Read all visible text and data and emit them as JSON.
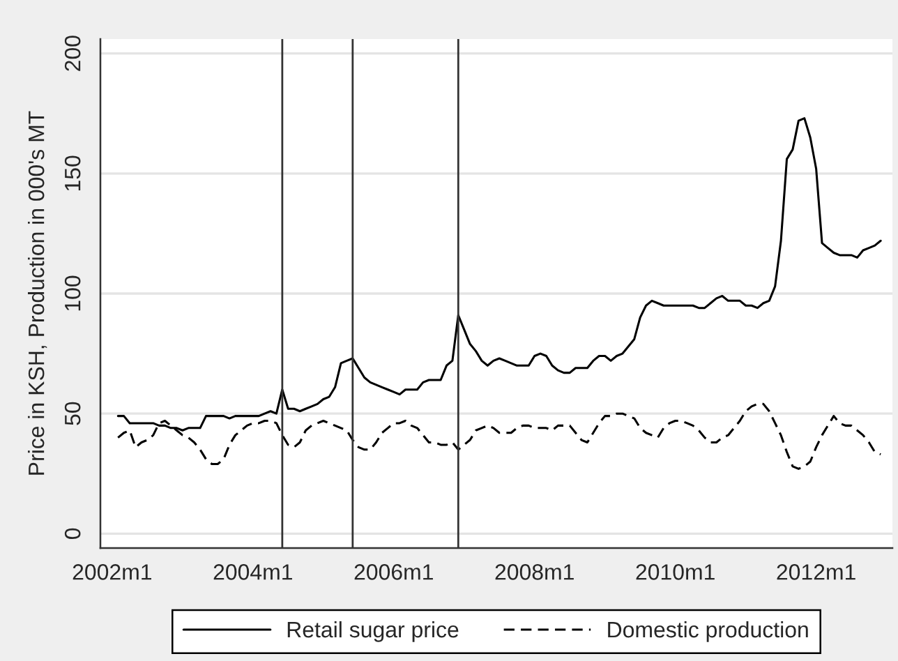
{
  "chart_data": {
    "type": "line",
    "ylabel": "Price in KSH, Production in 000's MT",
    "x": [
      "2002-02",
      "2002-03",
      "2002-04",
      "2002-05",
      "2002-06",
      "2002-07",
      "2002-08",
      "2002-09",
      "2002-10",
      "2002-11",
      "2002-12",
      "2003-01",
      "2003-02",
      "2003-03",
      "2003-04",
      "2003-05",
      "2003-06",
      "2003-07",
      "2003-08",
      "2003-09",
      "2003-10",
      "2003-11",
      "2003-12",
      "2004-01",
      "2004-02",
      "2004-03",
      "2004-04",
      "2004-05",
      "2004-06",
      "2004-07",
      "2004-08",
      "2004-09",
      "2004-10",
      "2004-11",
      "2004-12",
      "2005-01",
      "2005-02",
      "2005-03",
      "2005-04",
      "2005-05",
      "2005-06",
      "2005-07",
      "2005-08",
      "2005-09",
      "2005-10",
      "2005-11",
      "2005-12",
      "2006-01",
      "2006-02",
      "2006-03",
      "2006-04",
      "2006-05",
      "2006-06",
      "2006-07",
      "2006-08",
      "2006-09",
      "2006-10",
      "2006-11",
      "2006-12",
      "2007-01",
      "2007-02",
      "2007-03",
      "2007-04",
      "2007-05",
      "2007-06",
      "2007-07",
      "2007-08",
      "2007-09",
      "2007-10",
      "2007-11",
      "2007-12",
      "2008-01",
      "2008-02",
      "2008-03",
      "2008-04",
      "2008-05",
      "2008-06",
      "2008-07",
      "2008-08",
      "2008-09",
      "2008-10",
      "2008-11",
      "2008-12",
      "2009-01",
      "2009-02",
      "2009-03",
      "2009-04",
      "2009-05",
      "2009-06",
      "2009-07",
      "2009-08",
      "2009-09",
      "2009-10",
      "2009-11",
      "2009-12",
      "2010-01",
      "2010-02",
      "2010-03",
      "2010-04",
      "2010-05",
      "2010-06",
      "2010-07",
      "2010-08",
      "2010-09",
      "2010-10",
      "2010-11",
      "2010-12",
      "2011-01",
      "2011-02",
      "2011-03",
      "2011-04",
      "2011-05",
      "2011-06",
      "2011-07",
      "2011-08",
      "2011-09",
      "2011-10",
      "2011-11",
      "2011-12",
      "2012-01",
      "2012-02",
      "2012-03",
      "2012-04",
      "2012-05",
      "2012-06",
      "2012-07",
      "2012-08",
      "2012-09",
      "2012-10",
      "2012-11",
      "2012-12"
    ],
    "series": [
      {
        "name": "Retail sugar price",
        "color": "#000000",
        "line_style": "solid",
        "values": [
          49,
          49,
          46,
          46,
          46,
          46,
          46,
          45,
          45,
          44,
          44,
          43,
          44,
          44,
          44,
          49,
          49,
          49,
          49,
          48,
          49,
          49,
          49,
          49,
          49,
          50,
          51,
          50,
          60,
          52,
          52,
          51,
          52,
          53,
          54,
          56,
          57,
          61,
          71,
          72,
          73,
          69,
          65,
          63,
          62,
          61,
          60,
          59,
          58,
          60,
          60,
          60,
          63,
          64,
          64,
          64,
          70,
          72,
          91,
          85,
          79,
          76,
          72,
          70,
          72,
          73,
          72,
          71,
          70,
          70,
          70,
          74,
          75,
          74,
          70,
          68,
          67,
          67,
          69,
          69,
          69,
          72,
          74,
          74,
          72,
          74,
          75,
          78,
          81,
          90,
          95,
          97,
          96,
          95,
          95,
          95,
          95,
          95,
          95,
          94,
          94,
          96,
          98,
          99,
          97,
          97,
          97,
          95,
          95,
          94,
          96,
          97,
          103,
          122,
          156,
          160,
          172,
          173,
          165,
          152,
          121,
          119,
          117,
          116,
          116,
          116,
          115,
          118,
          119,
          120,
          122
        ]
      },
      {
        "name": "Domestic production",
        "color": "#000000",
        "line_style": "dashed",
        "values": [
          40,
          42,
          43,
          36,
          38,
          39,
          41,
          46,
          47,
          45,
          43,
          41,
          40,
          38,
          35,
          31,
          29,
          29,
          31,
          37,
          41,
          43,
          45,
          46,
          46,
          47,
          47,
          46,
          41,
          37,
          36,
          38,
          43,
          45,
          46,
          47,
          46,
          45,
          44,
          43,
          39,
          36,
          35,
          35,
          38,
          42,
          44,
          46,
          46,
          47,
          45,
          44,
          41,
          38,
          38,
          37,
          37,
          38,
          35,
          37,
          39,
          43,
          44,
          45,
          44,
          42,
          42,
          42,
          44,
          45,
          45,
          44,
          44,
          44,
          43,
          45,
          45,
          45,
          42,
          39,
          38,
          42,
          46,
          49,
          49,
          50,
          50,
          49,
          48,
          44,
          42,
          41,
          40,
          44,
          46,
          47,
          47,
          46,
          45,
          43,
          40,
          38,
          38,
          40,
          41,
          44,
          47,
          51,
          53,
          54,
          54,
          51,
          46,
          41,
          34,
          28,
          27,
          28,
          30,
          36,
          41,
          45,
          49,
          46,
          45,
          45,
          43,
          41,
          38,
          34,
          33
        ]
      }
    ],
    "xlim": [
      "2001-11",
      "2013-02"
    ],
    "xticks": [
      {
        "value": "2002-01",
        "label": "2002m1"
      },
      {
        "value": "2004-01",
        "label": "2004m1"
      },
      {
        "value": "2006-01",
        "label": "2006m1"
      },
      {
        "value": "2008-01",
        "label": "2008m1"
      },
      {
        "value": "2010-01",
        "label": "2010m1"
      },
      {
        "value": "2012-01",
        "label": "2012m1"
      }
    ],
    "ylim": [
      -6,
      206
    ],
    "yticks": [
      0,
      50,
      100,
      150,
      200
    ],
    "ref_lines": [
      {
        "axis": "x",
        "value": "2004-06",
        "color": "#333333"
      },
      {
        "axis": "x",
        "value": "2005-06",
        "color": "#333333"
      },
      {
        "axis": "x",
        "value": "2006-12",
        "color": "#333333"
      }
    ],
    "grid": "y",
    "legend": "bottom"
  }
}
